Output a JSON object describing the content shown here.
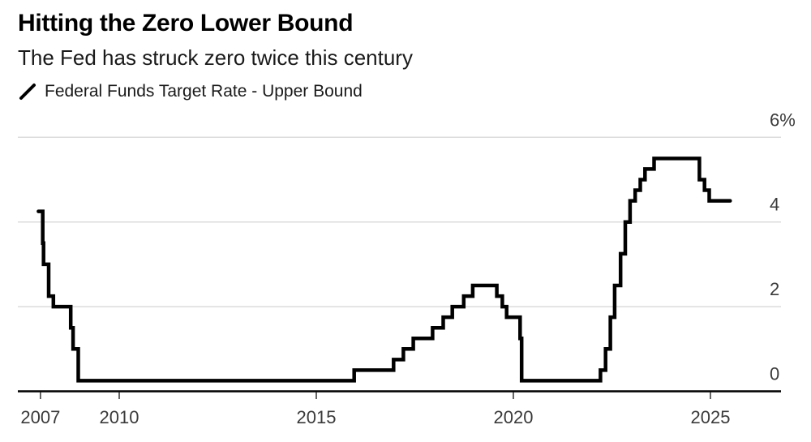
{
  "header": {
    "title": "Hitting the Zero Lower Bound",
    "subtitle": "The Fed has struck zero twice this century"
  },
  "legend": {
    "label": "Federal Funds Target Rate - Upper Bound"
  },
  "chart_data": {
    "type": "line",
    "step": "after",
    "title": "Hitting the Zero Lower Bound",
    "subtitle": "The Fed has struck zero twice this century",
    "series": [
      {
        "name": "Federal Funds Target Rate - Upper Bound",
        "color": "#000000",
        "x": [
          2007.95,
          2008.06,
          2008.08,
          2008.21,
          2008.33,
          2008.77,
          2008.83,
          2008.96,
          2015.96,
          2016.96,
          2017.21,
          2017.46,
          2017.95,
          2018.22,
          2018.45,
          2018.74,
          2018.97,
          2019.58,
          2019.72,
          2019.83,
          2020.17,
          2020.21,
          2022.21,
          2022.34,
          2022.46,
          2022.57,
          2022.72,
          2022.84,
          2022.96,
          2023.09,
          2023.22,
          2023.34,
          2023.57,
          2024.72,
          2024.85,
          2024.97
        ],
        "values": [
          4.25,
          3.5,
          3.0,
          2.25,
          2.0,
          1.5,
          1.0,
          0.25,
          0.5,
          0.75,
          1.0,
          1.25,
          1.5,
          1.75,
          2.0,
          2.25,
          2.5,
          2.25,
          2.0,
          1.75,
          1.25,
          0.25,
          0.5,
          1.0,
          1.75,
          2.5,
          3.25,
          4.0,
          4.5,
          4.75,
          5.0,
          5.25,
          5.5,
          5.0,
          4.75,
          4.5
        ],
        "end_x": 2025.5
      }
    ],
    "xlabel": "",
    "ylabel": "",
    "x_ticks": {
      "labels": [
        "2007",
        "2010",
        "2015",
        "2020",
        "2025"
      ],
      "years": [
        2007,
        2010,
        2015,
        2020,
        2025
      ]
    },
    "y_ticks": {
      "labels": [
        "0",
        "2",
        "4",
        "6%"
      ],
      "values": [
        0,
        2,
        4,
        6
      ]
    },
    "xlim": [
      2007.43,
      2026.8
    ],
    "ylim": [
      0,
      6
    ],
    "grid": "horizontal",
    "legend_position": "top-left",
    "colors": {
      "line": "#000000",
      "grid": "#dcdcdc",
      "zero_axis": "#000000",
      "tick_mark": "#333333",
      "tick_label": "#3a3a3a",
      "title": "#000000",
      "subtitle": "#1a1a1a"
    }
  }
}
